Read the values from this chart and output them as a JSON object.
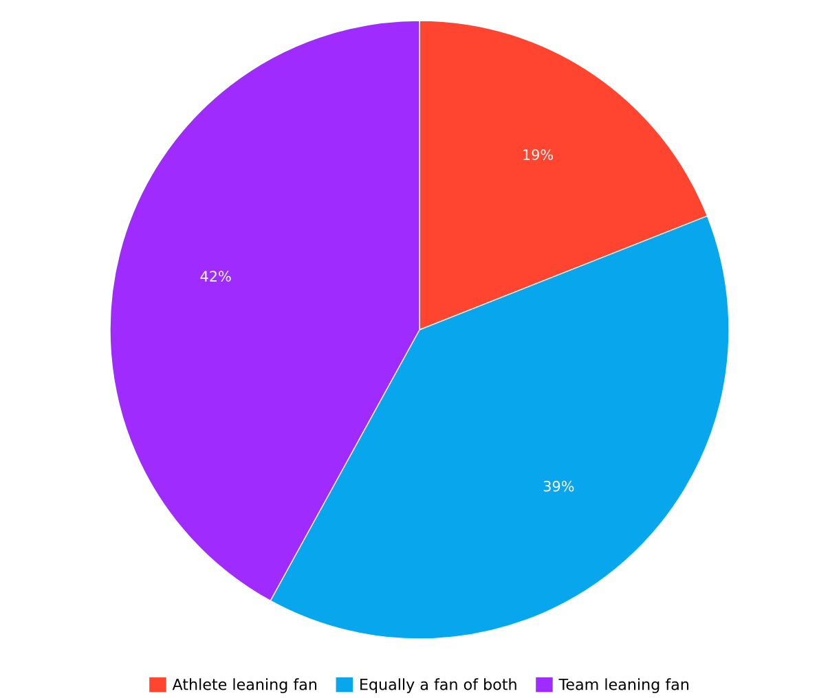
{
  "chart_data": {
    "type": "pie",
    "categories": [
      "Athlete leaning fan",
      "Equally a fan of both",
      "Team leaning fan"
    ],
    "values": [
      19,
      39,
      42
    ],
    "colors": [
      "#ff4530",
      "#08a6ec",
      "#a02bff"
    ],
    "value_labels": [
      "19%",
      "39%",
      "42%"
    ],
    "legend": "bottom"
  }
}
